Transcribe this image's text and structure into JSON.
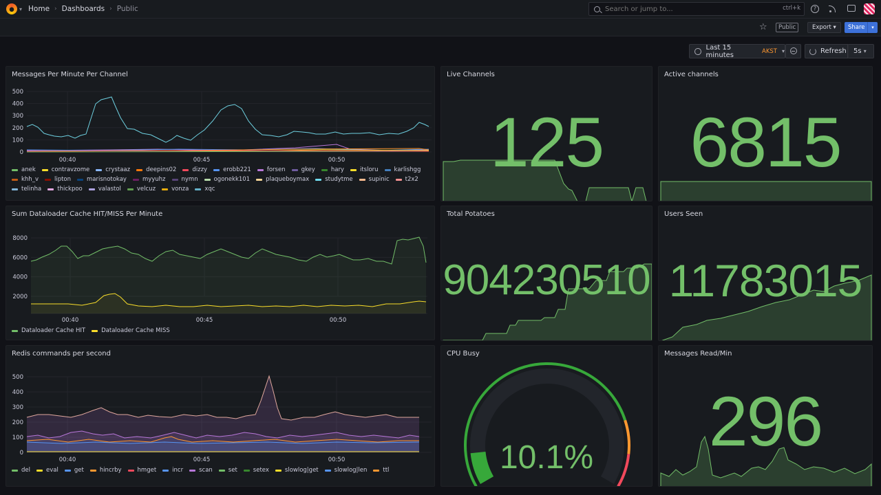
{
  "nav": {
    "breadcrumb": [
      "Home",
      "Dashboards",
      "Public"
    ],
    "search_placeholder": "Search or jump to...",
    "search_shortcut": "ctrl+k",
    "help_glyph": "?"
  },
  "toolbar": {
    "public_badge": "Public",
    "export_label": "Export",
    "share_label": "Share"
  },
  "time": {
    "range_label": "Last 15 minutes",
    "timezone": "AKST",
    "refresh_label": "Refresh",
    "interval": "5s"
  },
  "colors": {
    "green": "#73bf69",
    "yellow": "#fade2a",
    "blue": "#5794f2",
    "orange": "#ff9830",
    "red": "#f2495c",
    "purple": "#b877d9",
    "teal": "#6ed0e0"
  },
  "panels": {
    "messages": {
      "title": "Messages Per Minute Per Channel",
      "y_ticks": [
        "500",
        "400",
        "300",
        "200",
        "100",
        "0"
      ],
      "x_ticks": [
        "00:40",
        "00:45",
        "00:50"
      ],
      "legend": [
        {
          "name": "anek",
          "color": "#73bf69"
        },
        {
          "name": "contravzome",
          "color": "#fade2a"
        },
        {
          "name": "crystaaz",
          "color": "#8ab8ff"
        },
        {
          "name": "deepins02",
          "color": "#ff780a"
        },
        {
          "name": "dizzy",
          "color": "#f2495c"
        },
        {
          "name": "erobb221",
          "color": "#5794f2"
        },
        {
          "name": "forsen",
          "color": "#b877d9"
        },
        {
          "name": "gkey",
          "color": "#705da0"
        },
        {
          "name": "hary",
          "color": "#37872d"
        },
        {
          "name": "itsloru",
          "color": "#fade2a"
        },
        {
          "name": "karlishgg",
          "color": "#447ebc"
        },
        {
          "name": "khh_v",
          "color": "#c15c17"
        },
        {
          "name": "lipton",
          "color": "#890f02"
        },
        {
          "name": "marisnotokay",
          "color": "#0a437c"
        },
        {
          "name": "myyuhz",
          "color": "#6d1f62"
        },
        {
          "name": "nymn",
          "color": "#584477"
        },
        {
          "name": "ogonekk101",
          "color": "#b7dbab"
        },
        {
          "name": "plaqueboymax",
          "color": "#f4d598"
        },
        {
          "name": "studytme",
          "color": "#70dbed"
        },
        {
          "name": "supinic",
          "color": "#f9ba8f"
        },
        {
          "name": "t2x2",
          "color": "#f29191"
        },
        {
          "name": "telinha",
          "color": "#82b5d8"
        },
        {
          "name": "thickpoo",
          "color": "#e5a8e2"
        },
        {
          "name": "valastol",
          "color": "#aea2e0"
        },
        {
          "name": "velcuz",
          "color": "#629e51"
        },
        {
          "name": "vonza",
          "color": "#e5ac0e"
        },
        {
          "name": "xqc",
          "color": "#64b0c8"
        }
      ]
    },
    "live_channels": {
      "title": "Live Channels",
      "value": "125"
    },
    "active_channels": {
      "title": "Active channels",
      "value": "6815"
    },
    "dataloader": {
      "title": "Sum Dataloader Cache HIT/MISS Per Minute",
      "y_ticks": [
        "8000",
        "6000",
        "4000",
        "2000"
      ],
      "x_ticks": [
        "00:40",
        "00:45",
        "00:50"
      ],
      "legend": [
        {
          "name": "Dataloader Cache HIT",
          "color": "#73bf69"
        },
        {
          "name": "Dataloader Cache MISS",
          "color": "#fade2a"
        }
      ]
    },
    "total_potatoes": {
      "title": "Total Potatoes",
      "value": "904230510"
    },
    "users_seen": {
      "title": "Users Seen",
      "value": "11783015"
    },
    "redis": {
      "title": "Redis commands per second",
      "y_ticks": [
        "500",
        "400",
        "300",
        "200",
        "100",
        "0"
      ],
      "x_ticks": [
        "00:40",
        "00:45",
        "00:50"
      ],
      "legend": [
        {
          "name": "del",
          "color": "#73bf69"
        },
        {
          "name": "eval",
          "color": "#fade2a"
        },
        {
          "name": "get",
          "color": "#5794f2"
        },
        {
          "name": "hincrby",
          "color": "#ff9830"
        },
        {
          "name": "hmget",
          "color": "#f2495c"
        },
        {
          "name": "incr",
          "color": "#5794f2"
        },
        {
          "name": "scan",
          "color": "#b877d9"
        },
        {
          "name": "set",
          "color": "#73bf69"
        },
        {
          "name": "setex",
          "color": "#37872d"
        },
        {
          "name": "slowlog|get",
          "color": "#fade2a"
        },
        {
          "name": "slowlog|len",
          "color": "#5794f2"
        },
        {
          "name": "ttl",
          "color": "#ff9830"
        }
      ]
    },
    "cpu_busy": {
      "title": "CPU Busy",
      "value": "10.1%",
      "percent": 10.1
    },
    "messages_read": {
      "title": "Messages Read/Min",
      "value": "296"
    }
  }
}
